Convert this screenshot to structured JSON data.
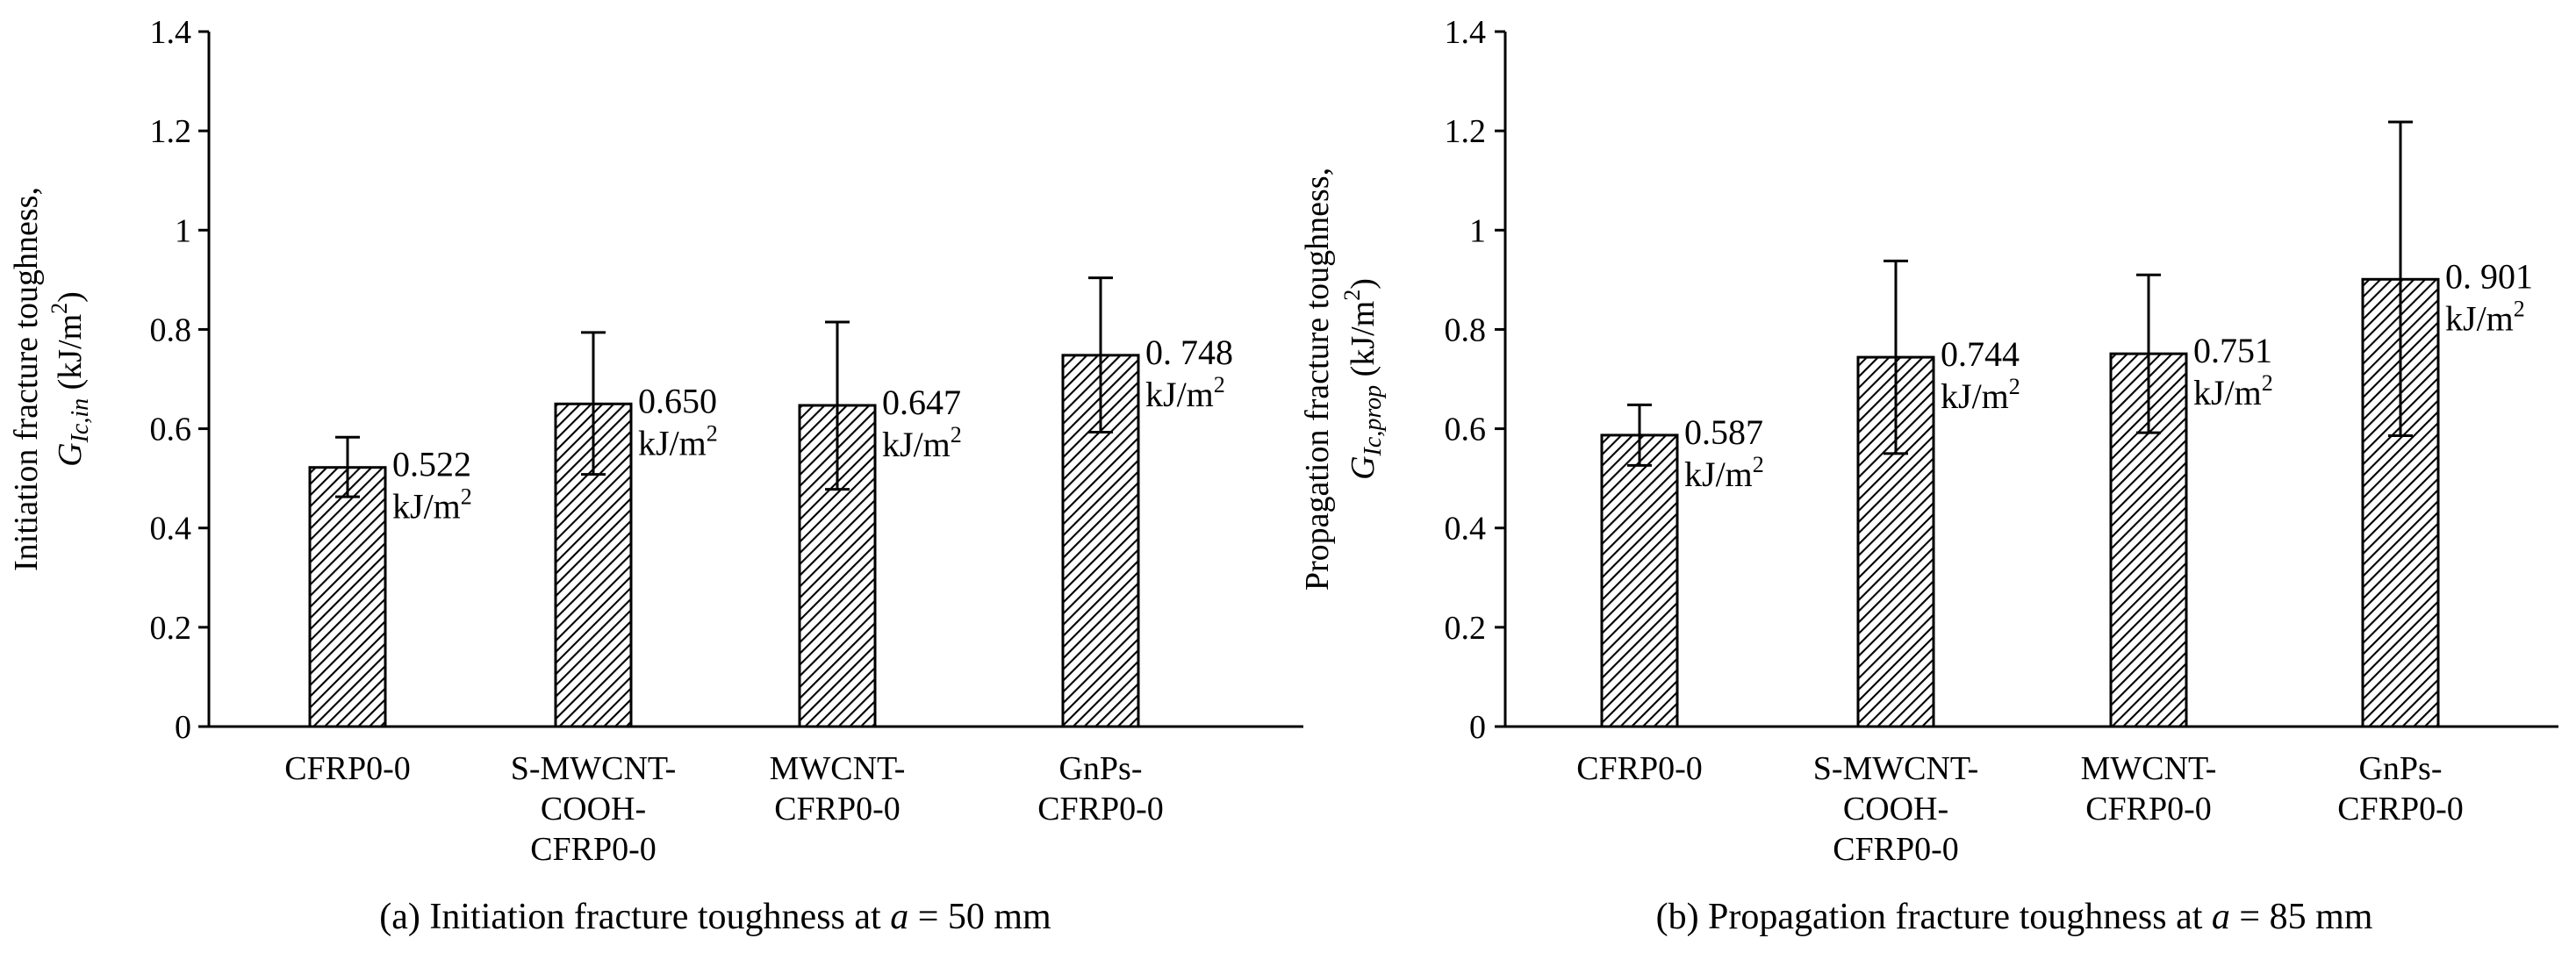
{
  "chart_data": [
    {
      "type": "bar",
      "id": "a",
      "title": "(a) Initiation fracture toughness at a = 50 mm",
      "title_parts": {
        "before": "(a) Initiation fracture toughness at ",
        "var": "a",
        "after": " = 50 mm"
      },
      "ylabel_line1": "Initiation fracture toughness,",
      "ylabel_line2": {
        "var": "G",
        "sub": "Ic,in",
        "unit": " (kJ/m",
        "sup": "2",
        "close": ")"
      },
      "xlabel": "",
      "categories": [
        [
          "CFRP0-0"
        ],
        [
          "S-MWCNT-",
          "COOH-",
          "CFRP0-0"
        ],
        [
          "MWCNT-",
          "CFRP0-0"
        ],
        [
          "GnPs-",
          "CFRP0-0"
        ]
      ],
      "values": [
        0.522,
        0.65,
        0.647,
        0.748
      ],
      "error_high": [
        0.583,
        0.794,
        0.815,
        0.904
      ],
      "error_low": [
        0.463,
        0.508,
        0.478,
        0.593
      ],
      "data_labels": [
        {
          "value": "0.522",
          "unit": "kJ/m",
          "sup": "2"
        },
        {
          "value": "0.650",
          "unit": "kJ/m",
          "sup": "2"
        },
        {
          "value": "0.647",
          "unit": "kJ/m",
          "sup": "2"
        },
        {
          "value": "0. 748",
          "unit": "kJ/m",
          "sup": "2"
        }
      ],
      "ylim": [
        0,
        1.4
      ],
      "yticks": [
        "0",
        "0.2",
        "0.4",
        "0.6",
        "0.8",
        "1",
        "1.2",
        "1.4"
      ],
      "grid": false,
      "bar_pattern": "diagonal-hatch"
    },
    {
      "type": "bar",
      "id": "b",
      "title": "(b) Propagation fracture toughness at a = 85 mm",
      "title_parts": {
        "before": "(b) Propagation fracture toughness at ",
        "var": "a",
        "after": " = 85 mm"
      },
      "ylabel_line1": "Propagation fracture toughness,",
      "ylabel_line2": {
        "var": "G",
        "sub": "Ic,prop",
        "unit": " (kJ/m",
        "sup": "2",
        "close": ")"
      },
      "xlabel": "",
      "categories": [
        [
          "CFRP0-0"
        ],
        [
          "S-MWCNT-",
          "COOH-",
          "CFRP0-0"
        ],
        [
          "MWCNT-",
          "CFRP0-0"
        ],
        [
          "GnPs-",
          "CFRP0-0"
        ]
      ],
      "values": [
        0.587,
        0.744,
        0.751,
        0.901
      ],
      "error_high": [
        0.648,
        0.938,
        0.91,
        1.218
      ],
      "error_low": [
        0.526,
        0.55,
        0.592,
        0.586
      ],
      "data_labels": [
        {
          "value": "0.587",
          "unit": "kJ/m",
          "sup": "2"
        },
        {
          "value": "0.744",
          "unit": "kJ/m",
          "sup": "2"
        },
        {
          "value": "0.751",
          "unit": "kJ/m",
          "sup": "2"
        },
        {
          "value": "0. 901",
          "unit": "kJ/m",
          "sup": "2"
        }
      ],
      "ylim": [
        0,
        1.4
      ],
      "yticks": [
        "0",
        "0.2",
        "0.4",
        "0.6",
        "0.8",
        "1",
        "1.2",
        "1.4"
      ],
      "grid": false,
      "bar_pattern": "diagonal-hatch"
    }
  ]
}
